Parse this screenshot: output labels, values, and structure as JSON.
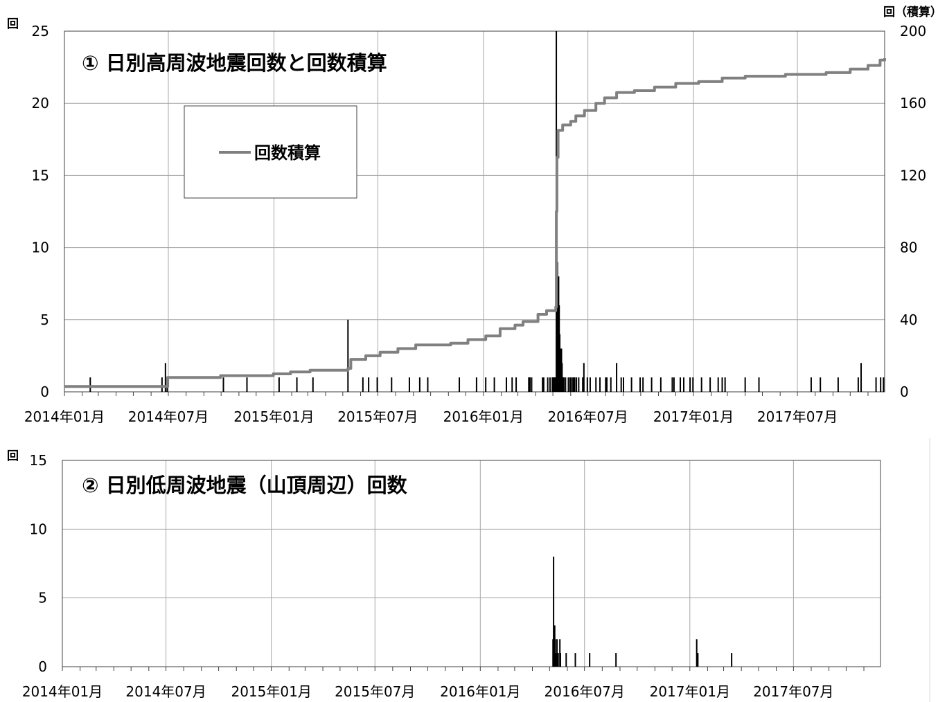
{
  "chart_data": [
    {
      "type": "bar",
      "title": "① 日別高周波地震回数と回数積算",
      "y_unit_left": "回",
      "y_unit_right": "回（積算）",
      "ylim": [
        0,
        25
      ],
      "y2lim": [
        0,
        200
      ],
      "y_ticks": [
        "0",
        "5",
        "10",
        "15",
        "20",
        "25"
      ],
      "y2_ticks": [
        "0",
        "40",
        "80",
        "120",
        "160",
        "200"
      ],
      "x_ticks": [
        "2014年01月",
        "2014年07月",
        "2015年01月",
        "2015年07月",
        "2016年01月",
        "2016年07月",
        "2017年01月",
        "2017年07月"
      ],
      "x_range": [
        "2014-01-01",
        "2017-11-30"
      ],
      "grid": true,
      "legend": {
        "label": "回数積算",
        "color": "#808080",
        "placement": "upper-left"
      },
      "series": [
        {
          "kind": "bar",
          "color": "#000000",
          "points": [
            [
              "2014-02-15",
              1
            ],
            [
              "2014-06-20",
              1
            ],
            [
              "2014-06-26",
              2
            ],
            [
              "2014-06-29",
              1
            ],
            [
              "2014-10-05",
              1
            ],
            [
              "2014-11-15",
              1
            ],
            [
              "2015-01-10",
              1
            ],
            [
              "2015-02-10",
              1
            ],
            [
              "2015-03-10",
              1
            ],
            [
              "2015-05-10",
              5
            ],
            [
              "2015-06-05",
              1
            ],
            [
              "2015-06-15",
              1
            ],
            [
              "2015-06-30",
              1
            ],
            [
              "2015-07-25",
              1
            ],
            [
              "2015-08-25",
              1
            ],
            [
              "2015-09-12",
              1
            ],
            [
              "2015-09-26",
              1
            ],
            [
              "2015-11-20",
              1
            ],
            [
              "2015-12-20",
              1
            ],
            [
              "2016-01-05",
              1
            ],
            [
              "2016-01-20",
              1
            ],
            [
              "2016-02-10",
              1
            ],
            [
              "2016-02-20",
              1
            ],
            [
              "2016-02-27",
              1
            ],
            [
              "2016-03-21",
              1
            ],
            [
              "2016-04-13",
              1
            ],
            [
              "2016-04-22",
              1
            ],
            [
              "2016-05-04",
              1
            ],
            [
              "2016-05-10",
              1
            ],
            [
              "2016-05-18",
              1
            ],
            [
              "2016-05-28",
              1
            ],
            [
              "2016-06-08",
              1
            ],
            [
              "2016-06-15",
              1
            ],
            [
              "2016-06-22",
              1
            ],
            [
              "2016-06-30",
              1
            ],
            [
              "2016-07-05",
              1
            ],
            [
              "2016-07-15",
              1
            ],
            [
              "2016-07-22",
              1
            ],
            [
              "2016-08-01",
              1
            ],
            [
              "2016-08-10",
              1
            ],
            [
              "2016-08-28",
              1
            ],
            [
              "2016-09-15",
              1
            ],
            [
              "2016-09-30",
              1
            ],
            [
              "2016-10-05",
              1
            ],
            [
              "2016-11-05",
              1
            ],
            [
              "2016-11-25",
              1
            ],
            [
              "2016-12-15",
              1
            ],
            [
              "2016-12-26",
              1
            ],
            [
              "2016-12-31",
              1
            ],
            [
              "2017-01-30",
              1
            ],
            [
              "2017-02-20",
              1
            ],
            [
              "2017-02-25",
              1
            ],
            [
              "2017-04-01",
              1
            ],
            [
              "2017-04-25",
              1
            ],
            [
              "2017-07-25",
              1
            ],
            [
              "2017-09-10",
              1
            ],
            [
              "2017-10-15",
              1
            ],
            [
              "2017-11-15",
              1
            ],
            [
              "2017-11-23",
              1
            ],
            [
              "2017-11-28",
              1
            ],
            [
              "2016-03-22",
              1
            ],
            [
              "2016-04-15",
              1
            ],
            [
              "2016-05-01",
              1
            ],
            [
              "2016-05-07",
              1
            ],
            [
              "2016-05-15",
              1
            ],
            [
              "2016-05-31",
              1
            ],
            [
              "2016-06-24",
              2
            ],
            [
              "2016-08-20",
              2
            ],
            [
              "2017-10-20",
              2
            ],
            [
              "2016-03-20",
              1
            ],
            [
              "2016-03-25",
              1
            ],
            [
              "2016-04-30",
              1
            ],
            [
              "2016-05-03",
              1
            ],
            [
              "2016-05-23",
              1
            ],
            [
              "2016-06-02",
              1
            ],
            [
              "2016-06-05",
              1
            ],
            [
              "2016-06-07",
              1
            ],
            [
              "2016-06-11",
              1
            ],
            [
              "2016-04-26",
              1
            ],
            [
              "2016-05-20",
              1
            ],
            [
              "2016-08-03",
              1
            ],
            [
              "2016-09-01",
              1
            ],
            [
              "2016-10-20",
              1
            ],
            [
              "2016-11-28",
              1
            ],
            [
              "2016-12-09",
              1
            ],
            [
              "2017-01-15",
              1
            ],
            [
              "2017-02-13",
              1
            ],
            [
              "2017-08-10",
              1
            ],
            [
              "2016-05-07",
              25
            ],
            [
              "2016-05-08",
              18
            ],
            [
              "2016-05-09",
              9
            ],
            [
              "2016-05-10",
              7
            ],
            [
              "2016-05-11",
              8
            ],
            [
              "2016-05-12",
              6
            ],
            [
              "2016-05-13",
              4
            ],
            [
              "2016-05-14",
              3
            ],
            [
              "2016-05-15",
              2
            ],
            [
              "2016-05-16",
              3
            ],
            [
              "2016-05-17",
              2
            ],
            [
              "2016-05-18",
              1
            ],
            [
              "2016-05-20",
              1
            ],
            [
              "2016-05-05",
              1
            ],
            [
              "2016-05-02",
              1
            ]
          ]
        },
        {
          "kind": "cumulative-line",
          "name": "回数積算",
          "color": "#808080",
          "points": [
            [
              "2014-01-01",
              3
            ],
            [
              "2014-06-10",
              3
            ],
            [
              "2014-06-30",
              8
            ],
            [
              "2014-09-30",
              9
            ],
            [
              "2014-12-31",
              10
            ],
            [
              "2015-01-30",
              11
            ],
            [
              "2015-03-05",
              12
            ],
            [
              "2015-05-10",
              13
            ],
            [
              "2015-05-15",
              18
            ],
            [
              "2015-06-10",
              20
            ],
            [
              "2015-07-05",
              22
            ],
            [
              "2015-08-05",
              24
            ],
            [
              "2015-09-05",
              26
            ],
            [
              "2015-11-05",
              27
            ],
            [
              "2015-12-05",
              29
            ],
            [
              "2016-01-05",
              31
            ],
            [
              "2016-01-30",
              35
            ],
            [
              "2016-02-25",
              37
            ],
            [
              "2016-03-10",
              39
            ],
            [
              "2016-04-05",
              43
            ],
            [
              "2016-04-20",
              45
            ],
            [
              "2016-05-06",
              47
            ],
            [
              "2016-05-07",
              100
            ],
            [
              "2016-05-08",
              130
            ],
            [
              "2016-05-10",
              145
            ],
            [
              "2016-05-18",
              148
            ],
            [
              "2016-06-01",
              150
            ],
            [
              "2016-06-10",
              153
            ],
            [
              "2016-06-25",
              156
            ],
            [
              "2016-07-15",
              160
            ],
            [
              "2016-07-30",
              163
            ],
            [
              "2016-08-20",
              166
            ],
            [
              "2016-09-20",
              167
            ],
            [
              "2016-10-25",
              169
            ],
            [
              "2016-12-01",
              171
            ],
            [
              "2017-01-10",
              172
            ],
            [
              "2017-02-20",
              174
            ],
            [
              "2017-04-01",
              175
            ],
            [
              "2017-06-10",
              176
            ],
            [
              "2017-08-20",
              177
            ],
            [
              "2017-10-01",
              179
            ],
            [
              "2017-11-01",
              181
            ],
            [
              "2017-11-22",
              184
            ],
            [
              "2017-11-30",
              185
            ]
          ]
        }
      ]
    },
    {
      "type": "bar",
      "title": "② 日別低周波地震（山頂周辺）回数",
      "y_unit_left": "回",
      "ylim": [
        0,
        15
      ],
      "y_ticks": [
        "0",
        "5",
        "10",
        "15"
      ],
      "x_ticks": [
        "2014年01月",
        "2014年07月",
        "2015年01月",
        "2015年07月",
        "2016年01月",
        "2016年07月",
        "2017年01月",
        "2017年07月"
      ],
      "x_range": [
        "2014-01-01",
        "2017-11-30"
      ],
      "grid": true,
      "series": [
        {
          "kind": "bar",
          "color": "#000000",
          "points": [
            [
              "2016-05-07",
              2
            ],
            [
              "2016-05-08",
              8
            ],
            [
              "2016-05-09",
              2
            ],
            [
              "2016-05-10",
              3
            ],
            [
              "2016-05-11",
              2
            ],
            [
              "2016-05-12",
              1
            ],
            [
              "2016-05-14",
              2
            ],
            [
              "2016-05-16",
              1
            ],
            [
              "2016-05-19",
              2
            ],
            [
              "2016-05-20",
              1
            ],
            [
              "2016-05-30",
              1
            ],
            [
              "2016-06-15",
              1
            ],
            [
              "2016-07-10",
              1
            ],
            [
              "2016-08-25",
              1
            ],
            [
              "2017-01-13",
              2
            ],
            [
              "2017-01-15",
              1
            ],
            [
              "2017-03-15",
              1
            ]
          ]
        }
      ]
    }
  ]
}
